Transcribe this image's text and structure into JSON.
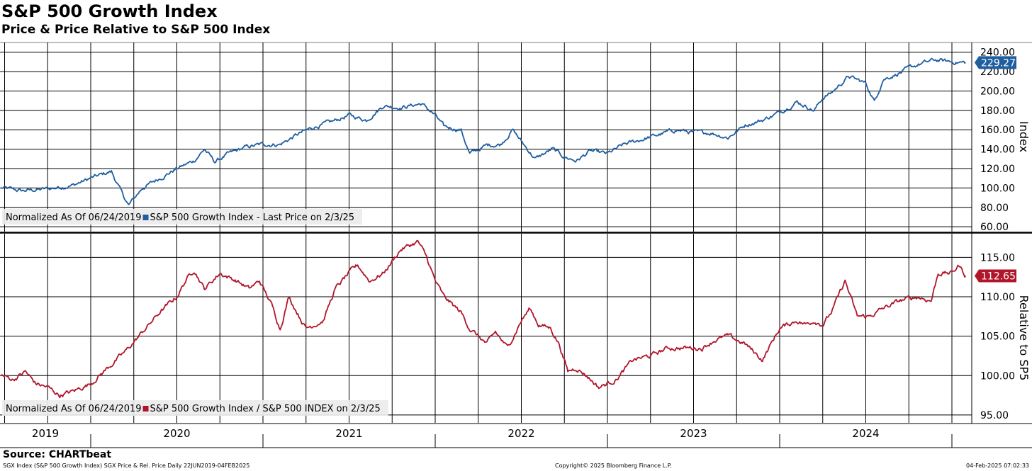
{
  "header": {
    "title": "S&P 500 Growth Index",
    "subtitle": "Price & Price Relative to S&P 500 Index"
  },
  "footer": {
    "source": "Source: CHARTbeat",
    "left": "SGX Index (S&P 500 Growth Index) SGX Price & Rel. Price  Daily 22JUN2019-04FEB2025",
    "center": "Copyright© 2025 Bloomberg Finance L.P.",
    "right": "04-Feb-2025 07:02:33"
  },
  "colors": {
    "price": "#1f5fa0",
    "relative": "#b0152a",
    "grid": "#000000"
  },
  "chart_data": [
    {
      "type": "line",
      "name": "price-panel",
      "ylabel": "Index",
      "ylim": [
        55,
        250
      ],
      "yticks": [
        60,
        80,
        100,
        120,
        140,
        160,
        180,
        200,
        220,
        240
      ],
      "ytick_labels": [
        "60.00",
        "80.00",
        "100.00",
        "120.00",
        "140.00",
        "160.00",
        "180.00",
        "200.00",
        "220.00",
        "240.00"
      ],
      "legend": "Normalized As Of 06/24/2019  ■S&P 500 Growth Index - Last Price on 2/3/25",
      "last_value_label": "229.27",
      "series": [
        {
          "name": "S&P 500 Growth Index - Last Price",
          "color": "#1f5fa0",
          "x": [
            2019.48,
            2019.6,
            2019.75,
            2019.9,
            2020.0,
            2020.12,
            2020.18,
            2020.22,
            2020.3,
            2020.4,
            2020.5,
            2020.6,
            2020.66,
            2020.72,
            2020.8,
            2020.9,
            2021.0,
            2021.1,
            2021.2,
            2021.3,
            2021.4,
            2021.5,
            2021.6,
            2021.7,
            2021.8,
            2021.92,
            2022.0,
            2022.05,
            2022.15,
            2022.2,
            2022.3,
            2022.38,
            2022.45,
            2022.5,
            2022.58,
            2022.68,
            2022.75,
            2022.82,
            2022.9,
            2023.0,
            2023.1,
            2023.2,
            2023.3,
            2023.4,
            2023.5,
            2023.6,
            2023.7,
            2023.8,
            2023.9,
            2024.0,
            2024.1,
            2024.2,
            2024.25,
            2024.3,
            2024.4,
            2024.5,
            2024.55,
            2024.6,
            2024.7,
            2024.8,
            2024.9,
            2025.0,
            2025.08
          ],
          "values": [
            100,
            97,
            99,
            103,
            110,
            117,
            95,
            82,
            100,
            110,
            120,
            128,
            140,
            127,
            135,
            142,
            145,
            145,
            155,
            163,
            168,
            175,
            170,
            185,
            183,
            187,
            175,
            163,
            160,
            135,
            144,
            145,
            160,
            148,
            130,
            140,
            132,
            128,
            138,
            135,
            145,
            150,
            155,
            160,
            157,
            157,
            152,
            165,
            170,
            178,
            189,
            180,
            193,
            198,
            215,
            208,
            189,
            212,
            219,
            227,
            232,
            230,
            229.27
          ]
        }
      ]
    },
    {
      "type": "line",
      "name": "relative-panel",
      "ylabel": "Relative to SP5",
      "ylim": [
        94,
        118
      ],
      "yticks": [
        95,
        100,
        105,
        110,
        115
      ],
      "ytick_labels": [
        "95.00",
        "100.00",
        "105.00",
        "110.00",
        "115.00"
      ],
      "legend": "Normalized As Of 06/24/2019  ■S&P 500 Growth Index / S&P 500 INDEX on 2/3/25",
      "last_value_label": "112.65",
      "series": [
        {
          "name": "S&P 500 Growth Index / S&P 500 INDEX",
          "color": "#b0152a",
          "x": [
            2019.48,
            2019.55,
            2019.62,
            2019.68,
            2019.75,
            2019.82,
            2019.9,
            2020.0,
            2020.1,
            2020.2,
            2020.3,
            2020.4,
            2020.5,
            2020.55,
            2020.6,
            2020.66,
            2020.75,
            2020.85,
            2020.92,
            2020.98,
            2021.05,
            2021.1,
            2021.15,
            2021.25,
            2021.35,
            2021.42,
            2021.5,
            2021.55,
            2021.62,
            2021.7,
            2021.8,
            2021.9,
            2021.95,
            2022.0,
            2022.05,
            2022.15,
            2022.2,
            2022.3,
            2022.35,
            2022.42,
            2022.5,
            2022.55,
            2022.6,
            2022.67,
            2022.72,
            2022.77,
            2022.82,
            2022.88,
            2022.95,
            2023.05,
            2023.15,
            2023.25,
            2023.35,
            2023.45,
            2023.55,
            2023.62,
            2023.7,
            2023.8,
            2023.85,
            2023.9,
            2024.0,
            2024.1,
            2024.15,
            2024.2,
            2024.25,
            2024.3,
            2024.38,
            2024.45,
            2024.52,
            2024.6,
            2024.7,
            2024.8,
            2024.88,
            2024.92,
            2025.0,
            2025.04,
            2025.08
          ],
          "values": [
            100,
            99.5,
            100.5,
            99,
            98.5,
            97.5,
            98,
            99,
            101,
            103,
            105.5,
            108,
            110,
            112,
            113.5,
            111,
            113,
            112,
            111,
            112,
            109,
            106,
            110,
            106,
            107,
            111,
            113,
            114,
            112,
            113,
            116,
            117,
            115,
            112,
            110,
            108,
            106,
            104,
            105.5,
            103.5,
            107,
            108.5,
            106.5,
            106,
            104,
            100.5,
            101,
            100,
            98.5,
            99.5,
            102,
            102.5,
            103.5,
            103.5,
            103.5,
            104.5,
            105,
            104,
            103,
            102,
            106,
            107,
            106.5,
            107,
            106.5,
            108,
            112,
            107.5,
            107.5,
            108.5,
            109.5,
            110,
            109.5,
            113,
            113,
            114,
            112.65
          ]
        }
      ]
    }
  ],
  "x_axis": {
    "labels": [
      {
        "label": "2019",
        "year": 2019
      },
      {
        "label": "2020",
        "year": 2020
      },
      {
        "label": "2021",
        "year": 2021
      },
      {
        "label": "2022",
        "year": 2022
      },
      {
        "label": "2023",
        "year": 2023
      },
      {
        "label": "2024",
        "year": 2024
      }
    ]
  }
}
